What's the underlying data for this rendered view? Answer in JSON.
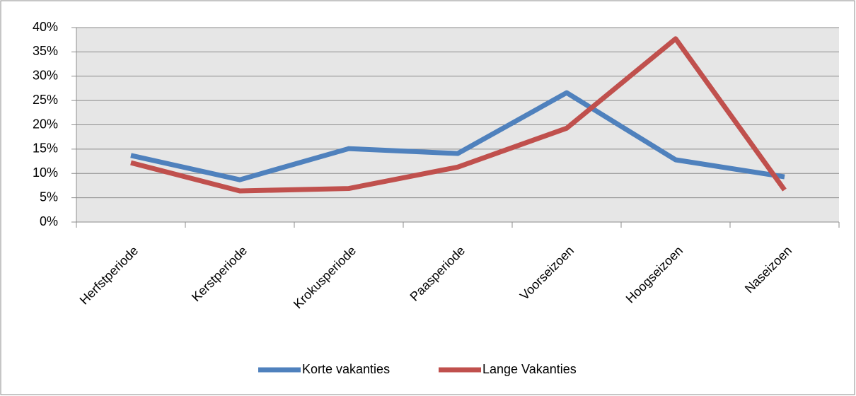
{
  "chart_data": {
    "type": "line",
    "categories": [
      "Herfstperiode",
      "Kerstperiode",
      "Krokusperiode",
      "Paasperiode",
      "Voorseizoen",
      "Hoogseizoen",
      "Naseizoen"
    ],
    "series": [
      {
        "name": "Korte vakanties",
        "color": "#4f81bd",
        "values": [
          13.7,
          8.7,
          15.1,
          14.1,
          26.6,
          12.8,
          9.3
        ]
      },
      {
        "name": "Lange Vakanties",
        "color": "#c0504d",
        "values": [
          12.2,
          6.4,
          6.9,
          11.3,
          19.3,
          37.7,
          6.6
        ]
      }
    ],
    "ylim": [
      0,
      40
    ],
    "yticks": [
      {
        "value": 0,
        "label": "0%"
      },
      {
        "value": 5,
        "label": "5%"
      },
      {
        "value": 10,
        "label": "10%"
      },
      {
        "value": 15,
        "label": "15%"
      },
      {
        "value": 20,
        "label": "20%"
      },
      {
        "value": 25,
        "label": "25%"
      },
      {
        "value": 30,
        "label": "30%"
      },
      {
        "value": 35,
        "label": "35%"
      },
      {
        "value": 40,
        "label": "40%"
      }
    ],
    "grid": true,
    "legend": "bottom"
  }
}
